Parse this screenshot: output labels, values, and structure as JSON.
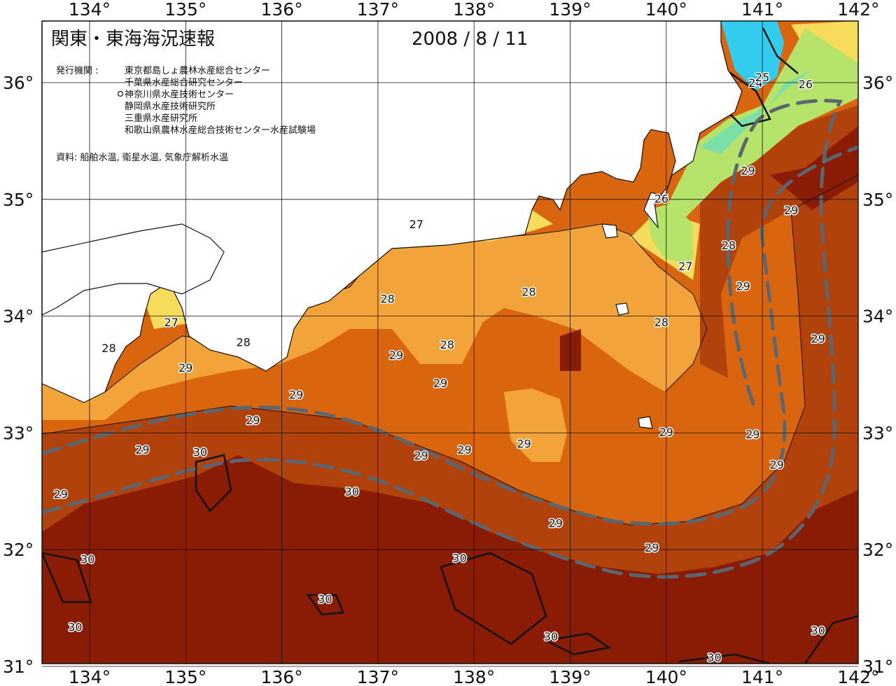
{
  "title": "関東・東海海況速報",
  "date": "2008 / 8 / 11",
  "issuer_label": "発行機関 :",
  "issuers": [
    "東京都島しょ農林水産総合センター",
    "千葉県水産総合研究センター",
    "神奈川県水産技術センター",
    "静岡県水産技術研究所",
    "三重県水産研究所",
    "和歌山県農林水産総合技術センター水産試験場"
  ],
  "source": "資料: 船舶水温, 衛星水温, 気象庁解析水温",
  "axes": {
    "lon_ticks": [
      "134°",
      "135°",
      "136°",
      "137°",
      "138°",
      "139°",
      "140°",
      "141°",
      "142°"
    ],
    "lat_ticks": [
      "36°",
      "35°",
      "34°",
      "33°",
      "32°",
      "31°"
    ]
  },
  "colors": {
    "t24": "#33ccee",
    "t25": "#7be0a8",
    "t26": "#b6e36a",
    "t27": "#f7dc5c",
    "t28": "#f2a43a",
    "t29": "#d9650e",
    "t29b": "#b2420c",
    "t30": "#8a1c05",
    "land": "#ffffff",
    "current": "#5a6670"
  },
  "isotherm_labels": [
    {
      "text": "24",
      "lon": 140.93,
      "lat": 35.99
    },
    {
      "text": "25",
      "lon": 141.0,
      "lat": 36.04
    },
    {
      "text": "26",
      "lon": 141.45,
      "lat": 35.98
    },
    {
      "text": "26",
      "lon": 139.95,
      "lat": 35.0
    },
    {
      "text": "27",
      "lon": 140.2,
      "lat": 34.42
    },
    {
      "text": "27",
      "lon": 137.4,
      "lat": 34.78
    },
    {
      "text": "27",
      "lon": 134.85,
      "lat": 33.94
    },
    {
      "text": "28",
      "lon": 137.1,
      "lat": 34.14
    },
    {
      "text": "28",
      "lon": 138.57,
      "lat": 34.2
    },
    {
      "text": "28",
      "lon": 140.65,
      "lat": 34.6
    },
    {
      "text": "28",
      "lon": 139.95,
      "lat": 33.94
    },
    {
      "text": "28",
      "lon": 137.72,
      "lat": 33.75
    },
    {
      "text": "28",
      "lon": 134.2,
      "lat": 33.72
    },
    {
      "text": "28",
      "lon": 135.6,
      "lat": 33.77
    },
    {
      "text": "29",
      "lon": 140.85,
      "lat": 35.24
    },
    {
      "text": "29",
      "lon": 141.3,
      "lat": 34.9
    },
    {
      "text": "29",
      "lon": 140.8,
      "lat": 34.25
    },
    {
      "text": "29",
      "lon": 141.58,
      "lat": 33.8
    },
    {
      "text": "29",
      "lon": 137.19,
      "lat": 33.66
    },
    {
      "text": "29",
      "lon": 137.65,
      "lat": 33.42
    },
    {
      "text": "29",
      "lon": 136.15,
      "lat": 33.32
    },
    {
      "text": "29",
      "lon": 135.0,
      "lat": 33.55
    },
    {
      "text": "29",
      "lon": 135.7,
      "lat": 33.1
    },
    {
      "text": "29",
      "lon": 134.55,
      "lat": 32.85
    },
    {
      "text": "29",
      "lon": 133.7,
      "lat": 32.47
    },
    {
      "text": "29",
      "lon": 137.9,
      "lat": 32.85
    },
    {
      "text": "29",
      "lon": 137.45,
      "lat": 32.8
    },
    {
      "text": "29",
      "lon": 138.52,
      "lat": 32.9
    },
    {
      "text": "29",
      "lon": 140.0,
      "lat": 33.0
    },
    {
      "text": "29",
      "lon": 140.9,
      "lat": 32.98
    },
    {
      "text": "29",
      "lon": 141.15,
      "lat": 32.72
    },
    {
      "text": "29",
      "lon": 138.85,
      "lat": 32.22
    },
    {
      "text": "29",
      "lon": 139.85,
      "lat": 32.01
    },
    {
      "text": "30",
      "lon": 135.15,
      "lat": 32.83
    },
    {
      "text": "30",
      "lon": 136.73,
      "lat": 32.49
    },
    {
      "text": "30",
      "lon": 133.98,
      "lat": 31.91
    },
    {
      "text": "30",
      "lon": 137.85,
      "lat": 31.92
    },
    {
      "text": "30",
      "lon": 136.45,
      "lat": 31.57
    },
    {
      "text": "30",
      "lon": 133.85,
      "lat": 31.33
    },
    {
      "text": "30",
      "lon": 138.8,
      "lat": 31.25
    },
    {
      "text": "30",
      "lon": 140.5,
      "lat": 31.07
    },
    {
      "text": "30",
      "lon": 141.58,
      "lat": 31.3
    }
  ]
}
